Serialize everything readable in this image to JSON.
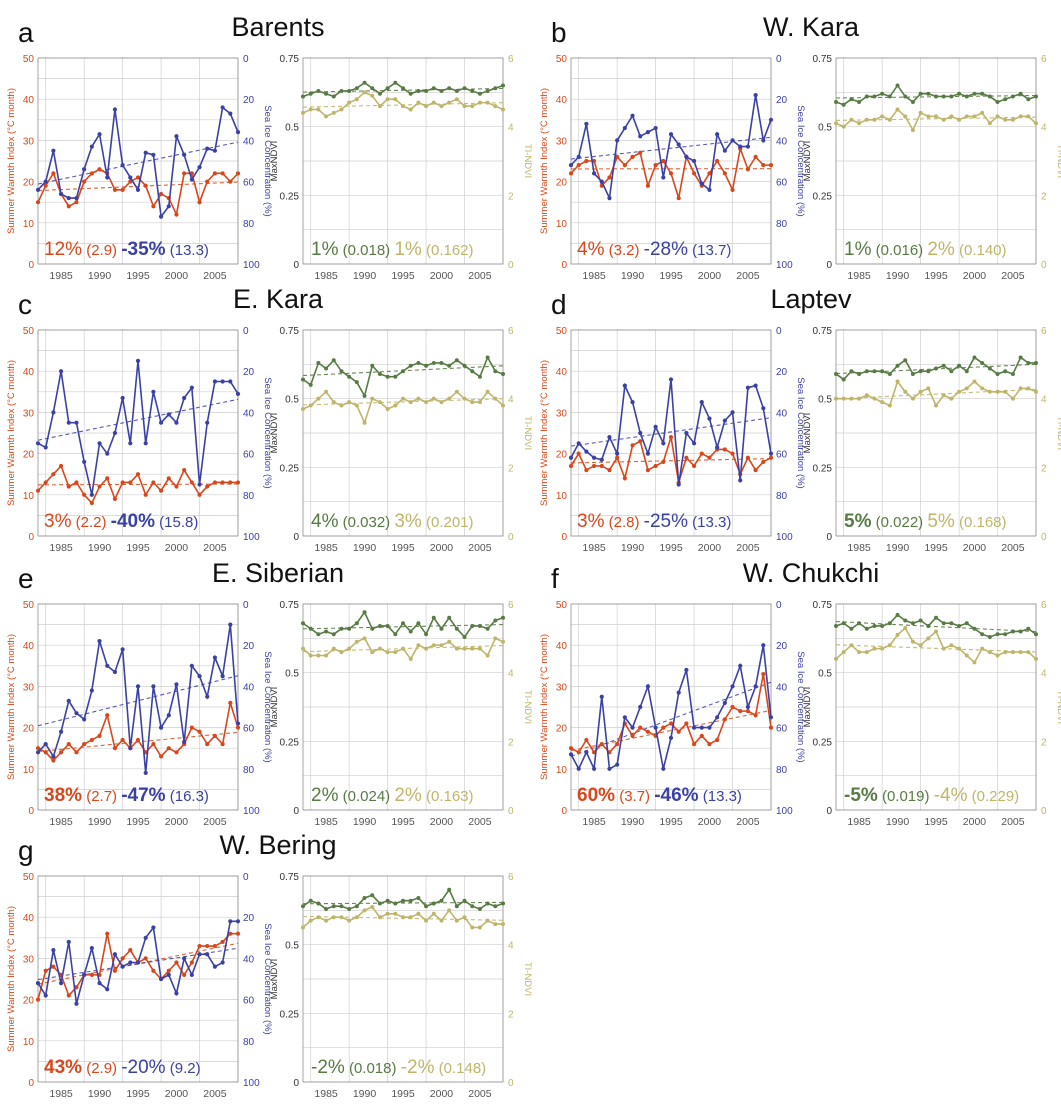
{
  "figure": {
    "colors": {
      "swi": "#d8471b",
      "ice": "#3b40a4",
      "maxndvi": "#587a44",
      "tindvi": "#bfb56a",
      "grid": "#cfcfcf",
      "axis": "#909090"
    },
    "axis_titles": {
      "swi": "Summer Warmth Index (°C month)",
      "ice": "Sea Ice Concentration (%)",
      "maxndvi": "MaxNDVI",
      "tindvi": "TI-NDVI"
    },
    "x_ticks": [
      1985,
      1990,
      1995,
      2000,
      2005
    ],
    "swi_ticks": [
      "0",
      "10",
      "20",
      "30",
      "40",
      "50"
    ],
    "ice_ticks": [
      "0",
      "20",
      "40",
      "60",
      "80",
      "100"
    ],
    "maxndvi_ticks": [
      "0",
      "0.25",
      "0.5",
      "0.75"
    ],
    "tindvi_ticks": [
      "0",
      "2",
      "4",
      "6"
    ]
  },
  "chart_data": [
    {
      "panel": "a",
      "title": "Barents",
      "type": "line",
      "years": [
        1982,
        1983,
        1984,
        1985,
        1986,
        1987,
        1988,
        1989,
        1990,
        1991,
        1992,
        1993,
        1994,
        1995,
        1996,
        1997,
        1998,
        1999,
        2000,
        2001,
        2002,
        2003,
        2004,
        2005,
        2006,
        2007,
        2008
      ],
      "swi": [
        15,
        19,
        22,
        17,
        14,
        15,
        20,
        22,
        23,
        22,
        18,
        18,
        20,
        21,
        19,
        14,
        17,
        16,
        12,
        22,
        22,
        15,
        20,
        22,
        22,
        20,
        22
      ],
      "ice": [
        64,
        60,
        45,
        66,
        68,
        68,
        54,
        43,
        37,
        58,
        25,
        52,
        58,
        64,
        46,
        47,
        77,
        72,
        38,
        47,
        59,
        53,
        44,
        45,
        24,
        27,
        36
      ],
      "maxndvi": [
        0.61,
        0.62,
        0.63,
        0.62,
        0.61,
        0.63,
        0.63,
        0.64,
        0.66,
        0.64,
        0.62,
        0.64,
        0.66,
        0.64,
        0.62,
        0.63,
        0.63,
        0.64,
        0.63,
        0.64,
        0.63,
        0.64,
        0.63,
        0.62,
        0.63,
        0.64,
        0.65
      ],
      "tindvi": [
        4.4,
        4.5,
        4.5,
        4.3,
        4.4,
        4.5,
        4.7,
        4.8,
        5.0,
        4.9,
        4.6,
        4.8,
        4.8,
        4.6,
        4.5,
        4.7,
        4.6,
        4.7,
        4.6,
        4.7,
        4.8,
        4.6,
        4.6,
        4.7,
        4.7,
        4.6,
        4.5
      ],
      "annotations": {
        "swi_pct": "12%",
        "swi_val": "(2.9)",
        "swi_bold": false,
        "ice_pct": "-35%",
        "ice_val": "(13.3)",
        "ice_bold": true,
        "maxndvi_pct": "1%",
        "maxndvi_val": "(0.018)",
        "maxndvi_bold": false,
        "tindvi_pct": "1%",
        "tindvi_val": "(0.162)",
        "tindvi_bold": false
      }
    },
    {
      "panel": "b",
      "title": "W. Kara",
      "type": "line",
      "years": [
        1982,
        1983,
        1984,
        1985,
        1986,
        1987,
        1988,
        1989,
        1990,
        1991,
        1992,
        1993,
        1994,
        1995,
        1996,
        1997,
        1998,
        1999,
        2000,
        2001,
        2002,
        2003,
        2004,
        2005,
        2006,
        2007,
        2008
      ],
      "swi": [
        22,
        24,
        25,
        25,
        19,
        21,
        26,
        24,
        26,
        27,
        19,
        24,
        25,
        22,
        16,
        26,
        22,
        19,
        22,
        25,
        22,
        18,
        28,
        23,
        26,
        24,
        24
      ],
      "ice": [
        52,
        48,
        32,
        56,
        60,
        68,
        40,
        34,
        28,
        38,
        36,
        34,
        58,
        37,
        42,
        48,
        50,
        61,
        64,
        37,
        45,
        40,
        43,
        43,
        18,
        40,
        30
      ],
      "maxndvi": [
        0.59,
        0.58,
        0.6,
        0.59,
        0.61,
        0.61,
        0.62,
        0.61,
        0.65,
        0.61,
        0.59,
        0.62,
        0.62,
        0.61,
        0.61,
        0.61,
        0.62,
        0.61,
        0.62,
        0.62,
        0.61,
        0.59,
        0.6,
        0.61,
        0.62,
        0.6,
        0.61
      ],
      "tindvi": [
        4.1,
        4.0,
        4.2,
        4.1,
        4.2,
        4.2,
        4.3,
        4.2,
        4.5,
        4.3,
        3.9,
        4.4,
        4.3,
        4.3,
        4.2,
        4.3,
        4.2,
        4.3,
        4.3,
        4.4,
        4.1,
        4.3,
        4.2,
        4.2,
        4.3,
        4.3,
        4.1
      ],
      "annotations": {
        "swi_pct": "4%",
        "swi_val": "(3.2)",
        "swi_bold": false,
        "ice_pct": "-28%",
        "ice_val": "(13.7)",
        "ice_bold": false,
        "maxndvi_pct": "1%",
        "maxndvi_val": "(0.016)",
        "maxndvi_bold": false,
        "tindvi_pct": "2%",
        "tindvi_val": "(0.140)",
        "tindvi_bold": false
      }
    },
    {
      "panel": "c",
      "title": "E. Kara",
      "type": "line",
      "years": [
        1982,
        1983,
        1984,
        1985,
        1986,
        1987,
        1988,
        1989,
        1990,
        1991,
        1992,
        1993,
        1994,
        1995,
        1996,
        1997,
        1998,
        1999,
        2000,
        2001,
        2002,
        2003,
        2004,
        2005,
        2006,
        2007,
        2008
      ],
      "swi": [
        11,
        13,
        15,
        17,
        12,
        13,
        10,
        8,
        12,
        14,
        9,
        13,
        13,
        15,
        10,
        13,
        11,
        14,
        12,
        16,
        13,
        10,
        12,
        13,
        13,
        13,
        13
      ],
      "ice": [
        55,
        57,
        40,
        20,
        45,
        45,
        64,
        80,
        55,
        60,
        50,
        33,
        55,
        15,
        55,
        30,
        45,
        41,
        45,
        33,
        28,
        75,
        45,
        25,
        25,
        25,
        31
      ],
      "maxndvi": [
        0.57,
        0.55,
        0.63,
        0.61,
        0.64,
        0.6,
        0.58,
        0.56,
        0.51,
        0.62,
        0.59,
        0.58,
        0.58,
        0.6,
        0.62,
        0.63,
        0.62,
        0.63,
        0.63,
        0.62,
        0.64,
        0.62,
        0.6,
        0.58,
        0.65,
        0.6,
        0.59
      ],
      "tindvi": [
        3.7,
        3.8,
        4.0,
        4.2,
        3.9,
        3.8,
        3.9,
        3.8,
        3.3,
        4.0,
        3.9,
        3.7,
        3.8,
        4.0,
        3.9,
        4.0,
        3.9,
        4.0,
        3.9,
        4.0,
        4.2,
        4.0,
        3.9,
        3.9,
        4.2,
        4.0,
        3.8
      ],
      "annotations": {
        "swi_pct": "3%",
        "swi_val": "(2.2)",
        "swi_bold": false,
        "ice_pct": "-40%",
        "ice_val": "(15.8)",
        "ice_bold": true,
        "maxndvi_pct": "4%",
        "maxndvi_val": "(0.032)",
        "maxndvi_bold": false,
        "tindvi_pct": "3%",
        "tindvi_val": "(0.201)",
        "tindvi_bold": false
      }
    },
    {
      "panel": "d",
      "title": "Laptev",
      "type": "line",
      "years": [
        1982,
        1983,
        1984,
        1985,
        1986,
        1987,
        1988,
        1989,
        1990,
        1991,
        1992,
        1993,
        1994,
        1995,
        1996,
        1997,
        1998,
        1999,
        2000,
        2001,
        2002,
        2003,
        2004,
        2005,
        2006,
        2007,
        2008
      ],
      "swi": [
        17,
        20,
        16,
        17,
        17,
        16,
        19,
        14,
        22,
        23,
        16,
        17,
        18,
        24,
        13,
        19,
        17,
        20,
        19,
        21,
        21,
        20,
        15,
        19,
        16,
        18,
        19
      ],
      "ice": [
        62,
        55,
        59,
        62,
        63,
        52,
        60,
        27,
        35,
        50,
        60,
        47,
        55,
        24,
        75,
        50,
        55,
        35,
        43,
        57,
        44,
        40,
        73,
        28,
        27,
        38,
        60
      ],
      "maxndvi": [
        0.59,
        0.57,
        0.6,
        0.59,
        0.6,
        0.6,
        0.6,
        0.59,
        0.62,
        0.64,
        0.59,
        0.6,
        0.6,
        0.61,
        0.62,
        0.6,
        0.62,
        0.6,
        0.65,
        0.63,
        0.61,
        0.59,
        0.6,
        0.59,
        0.65,
        0.63,
        0.63
      ],
      "tindvi": [
        4.0,
        4.0,
        4.0,
        4.0,
        4.1,
        4.0,
        3.9,
        3.8,
        4.5,
        4.2,
        4.0,
        4.2,
        4.3,
        3.8,
        4.1,
        4.0,
        4.2,
        4.3,
        4.5,
        4.3,
        4.2,
        4.2,
        4.2,
        4.0,
        4.3,
        4.3,
        4.2
      ],
      "annotations": {
        "swi_pct": "3%",
        "swi_val": "(2.8)",
        "swi_bold": false,
        "ice_pct": "-25%",
        "ice_val": "(13.3)",
        "ice_bold": false,
        "maxndvi_pct": "5%",
        "maxndvi_val": "(0.022)",
        "maxndvi_bold": true,
        "tindvi_pct": "5%",
        "tindvi_val": "(0.168)",
        "tindvi_bold": false
      }
    },
    {
      "panel": "e",
      "title": "E. Siberian",
      "type": "line",
      "years": [
        1982,
        1983,
        1984,
        1985,
        1986,
        1987,
        1988,
        1989,
        1990,
        1991,
        1992,
        1993,
        1994,
        1995,
        1996,
        1997,
        1998,
        1999,
        2000,
        2001,
        2002,
        2003,
        2004,
        2005,
        2006,
        2007,
        2008
      ],
      "swi": [
        15,
        14,
        12,
        14,
        16,
        14,
        16,
        17,
        18,
        23,
        15,
        17,
        15,
        17,
        14,
        16,
        13,
        15,
        14,
        16,
        20,
        19,
        16,
        18,
        16,
        26,
        20
      ],
      "ice": [
        72,
        68,
        74,
        62,
        47,
        53,
        56,
        42,
        18,
        30,
        33,
        22,
        70,
        40,
        82,
        40,
        60,
        54,
        39,
        67,
        30,
        35,
        45,
        26,
        35,
        10,
        58
      ],
      "maxndvi": [
        0.68,
        0.66,
        0.64,
        0.65,
        0.64,
        0.66,
        0.66,
        0.68,
        0.72,
        0.66,
        0.67,
        0.67,
        0.64,
        0.68,
        0.65,
        0.68,
        0.64,
        0.7,
        0.66,
        0.7,
        0.66,
        0.63,
        0.67,
        0.67,
        0.66,
        0.69,
        0.7
      ],
      "tindvi": [
        4.7,
        4.5,
        4.5,
        4.5,
        4.7,
        4.6,
        4.7,
        4.9,
        5.0,
        4.6,
        4.7,
        4.6,
        4.6,
        4.7,
        4.4,
        4.8,
        4.7,
        4.8,
        4.8,
        4.9,
        4.7,
        4.7,
        4.7,
        4.7,
        4.5,
        5.0,
        4.9
      ],
      "annotations": {
        "swi_pct": "38%",
        "swi_val": "(2.7)",
        "swi_bold": true,
        "ice_pct": "-47%",
        "ice_val": "(16.3)",
        "ice_bold": true,
        "maxndvi_pct": "2%",
        "maxndvi_val": "(0.024)",
        "maxndvi_bold": false,
        "tindvi_pct": "2%",
        "tindvi_val": "(0.163)",
        "tindvi_bold": false
      }
    },
    {
      "panel": "f",
      "title": "W. Chukchi",
      "type": "line",
      "years": [
        1982,
        1983,
        1984,
        1985,
        1986,
        1987,
        1988,
        1989,
        1990,
        1991,
        1992,
        1993,
        1994,
        1995,
        1996,
        1997,
        1998,
        1999,
        2000,
        2001,
        2002,
        2003,
        2004,
        2005,
        2006,
        2007,
        2008
      ],
      "swi": [
        15,
        14,
        17,
        14,
        16,
        14,
        16,
        21,
        18,
        20,
        19,
        18,
        20,
        21,
        19,
        21,
        16,
        18,
        16,
        17,
        22,
        25,
        24,
        24,
        23,
        33,
        20
      ],
      "ice": [
        73,
        80,
        72,
        80,
        45,
        80,
        78,
        55,
        60,
        50,
        40,
        60,
        80,
        65,
        43,
        32,
        60,
        60,
        60,
        55,
        48,
        40,
        30,
        50,
        40,
        20,
        55
      ],
      "maxndvi": [
        0.67,
        0.68,
        0.66,
        0.68,
        0.66,
        0.67,
        0.67,
        0.68,
        0.71,
        0.69,
        0.68,
        0.69,
        0.67,
        0.7,
        0.68,
        0.68,
        0.67,
        0.68,
        0.66,
        0.64,
        0.63,
        0.64,
        0.64,
        0.65,
        0.65,
        0.66,
        0.64
      ],
      "tindvi": [
        4.4,
        4.6,
        4.8,
        4.6,
        4.6,
        4.7,
        4.7,
        4.8,
        5.1,
        5.3,
        4.9,
        4.8,
        5.0,
        5.2,
        4.7,
        4.8,
        4.7,
        4.5,
        4.3,
        4.7,
        4.6,
        4.5,
        4.6,
        4.6,
        4.6,
        4.6,
        4.4
      ],
      "annotations": {
        "swi_pct": "60%",
        "swi_val": "(3.7)",
        "swi_bold": true,
        "ice_pct": "-46%",
        "ice_val": "(13.3)",
        "ice_bold": true,
        "maxndvi_pct": "-5%",
        "maxndvi_val": "(0.019)",
        "maxndvi_bold": true,
        "tindvi_pct": "-4%",
        "tindvi_val": "(0.229)",
        "tindvi_bold": false
      }
    },
    {
      "panel": "g",
      "title": "W. Bering",
      "type": "line",
      "years": [
        1982,
        1983,
        1984,
        1985,
        1986,
        1987,
        1988,
        1989,
        1990,
        1991,
        1992,
        1993,
        1994,
        1995,
        1996,
        1997,
        1998,
        1999,
        2000,
        2001,
        2002,
        2003,
        2004,
        2005,
        2006,
        2007,
        2008
      ],
      "swi": [
        20,
        27,
        28,
        26,
        21,
        23,
        26,
        26,
        26,
        36,
        27,
        30,
        32,
        29,
        30,
        27,
        25,
        27,
        29,
        26,
        29,
        33,
        33,
        33,
        34,
        36,
        36
      ],
      "ice": [
        52,
        58,
        36,
        52,
        32,
        62,
        48,
        35,
        52,
        55,
        38,
        44,
        42,
        42,
        30,
        25,
        50,
        48,
        57,
        40,
        48,
        38,
        38,
        44,
        42,
        22,
        22
      ],
      "maxndvi": [
        0.64,
        0.66,
        0.65,
        0.63,
        0.64,
        0.64,
        0.63,
        0.64,
        0.67,
        0.68,
        0.65,
        0.66,
        0.65,
        0.66,
        0.66,
        0.67,
        0.64,
        0.65,
        0.66,
        0.7,
        0.64,
        0.66,
        0.64,
        0.63,
        0.65,
        0.64,
        0.65
      ],
      "tindvi": [
        4.5,
        4.7,
        4.8,
        4.7,
        4.8,
        4.8,
        4.7,
        4.8,
        5.0,
        5.1,
        4.8,
        4.9,
        4.9,
        4.8,
        4.8,
        4.9,
        4.7,
        4.9,
        4.7,
        5.0,
        4.7,
        4.8,
        4.5,
        4.5,
        4.7,
        4.6,
        4.6
      ],
      "annotations": {
        "swi_pct": "43%",
        "swi_val": "(2.9)",
        "swi_bold": true,
        "ice_pct": "-20%",
        "ice_val": "(9.2)",
        "ice_bold": false,
        "maxndvi_pct": "-2%",
        "maxndvi_val": "(0.018)",
        "maxndvi_bold": false,
        "tindvi_pct": "-2%",
        "tindvi_val": "(0.148)",
        "tindvi_bold": false
      }
    }
  ]
}
